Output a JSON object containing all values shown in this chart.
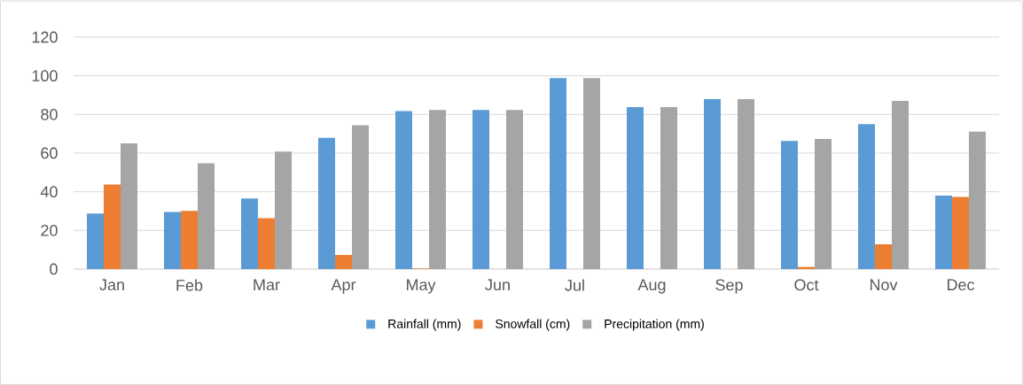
{
  "chart_data": {
    "type": "bar",
    "categories": [
      "Jan",
      "Feb",
      "Mar",
      "Apr",
      "May",
      "Jun",
      "Jul",
      "Aug",
      "Sep",
      "Oct",
      "Nov",
      "Dec"
    ],
    "series": [
      {
        "name": "Rainfall (mm)",
        "color": "#5b9bd5",
        "values": [
          28.7,
          29.5,
          36.5,
          67.9,
          81.7,
          82.3,
          98.8,
          83.8,
          87.9,
          66.3,
          75.0,
          38.0
        ]
      },
      {
        "name": "Snowfall (cm)",
        "color": "#ed7d31",
        "values": [
          43.7,
          30.1,
          26.3,
          7.3,
          0.3,
          0,
          0,
          0,
          0,
          1.1,
          12.8,
          37.3
        ]
      },
      {
        "name": "Precipitation (mm)",
        "color": "#a5a5a5",
        "values": [
          65.0,
          54.7,
          60.8,
          74.4,
          82.3,
          82.3,
          98.8,
          83.8,
          87.9,
          67.3,
          87.0,
          71.1
        ]
      }
    ],
    "ylim": [
      0,
      120
    ],
    "yticks": [
      0,
      20,
      40,
      60,
      80,
      100,
      120
    ],
    "grid": "y",
    "legend": "bottom"
  }
}
